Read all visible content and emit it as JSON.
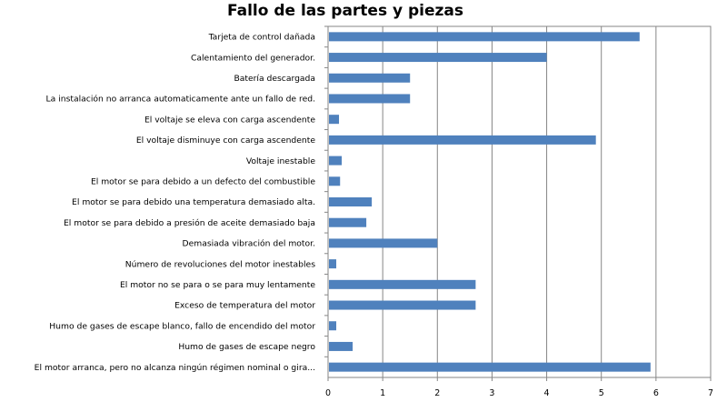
{
  "chart_data": {
    "type": "bar",
    "orientation": "horizontal",
    "title": "Fallo de las partes y piezas",
    "xlabel": "",
    "ylabel": "",
    "xlim": [
      0,
      7
    ],
    "x_ticks": [
      "0",
      "1",
      "2",
      "3",
      "4",
      "5",
      "6",
      "7"
    ],
    "grid": "vertical",
    "legend": "none",
    "bar_color": "#4F81BD",
    "categories": [
      "Tarjeta de control dañada",
      "Calentamiento del generador.",
      "Batería descargada",
      "La instalación  no arranca  automaticamente  ante un fallo de red.",
      "El voltaje  se eleva con carga  ascendente",
      "El voltaje  disminuye con carga  ascendente",
      "Voltaje  inestable",
      "El motor se para debido a un defecto del combustible",
      "El motor se para debido una temperatura  demasiado  alta.",
      "El motor se para debido a presión de aceite demasiado  baja",
      "Demasiada vibración  del motor.",
      "Número de revoluciones del motor inestables",
      "El motor no se para o se para  muy lentamente",
      "Exceso de temperatura del motor",
      "Humo de gases de escape blanco, fallo de encendido del motor",
      "Humo de gases de escape negro",
      "El motor arranca,  pero no alcanza  ningún régimen nominal o gira..."
    ],
    "values": [
      5.7,
      4.0,
      1.5,
      1.5,
      0.2,
      4.9,
      0.25,
      0.22,
      0.8,
      0.7,
      2.0,
      0.15,
      2.7,
      2.7,
      0.15,
      0.45,
      5.9
    ]
  }
}
